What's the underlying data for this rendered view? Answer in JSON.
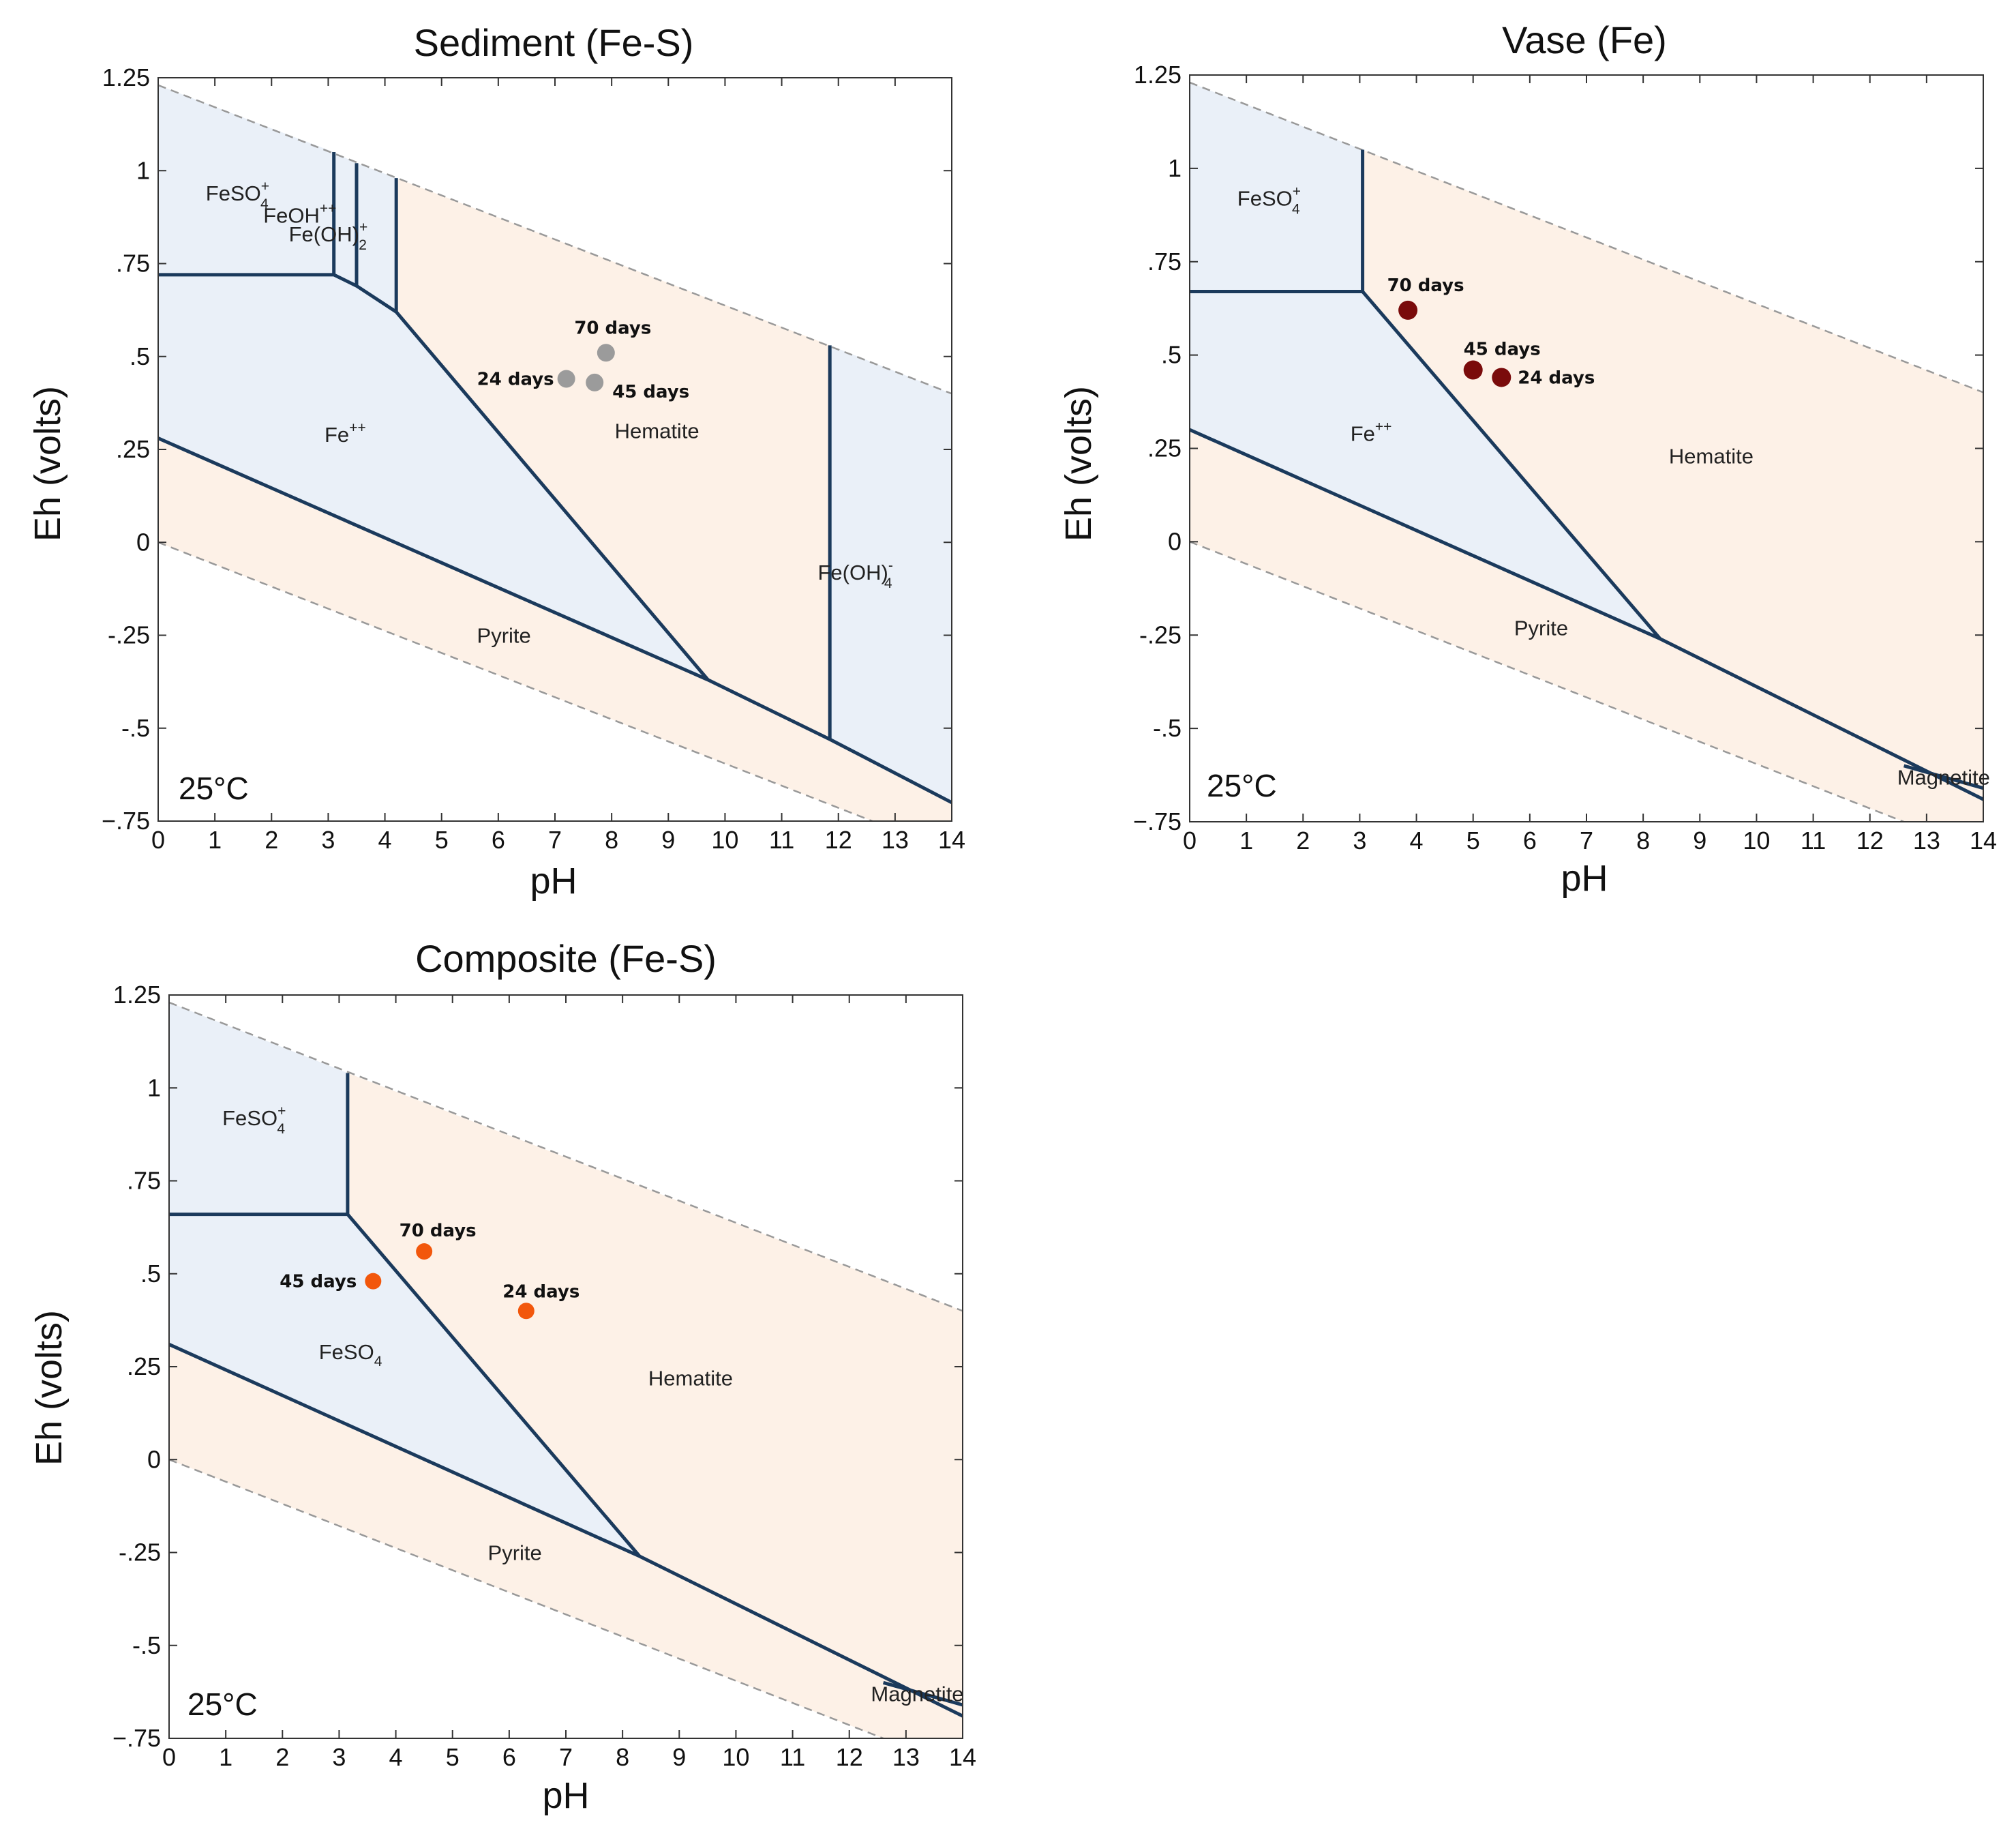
{
  "chart_data": [
    {
      "type": "scatter",
      "title": "Sediment (Fe-S)",
      "xlabel": "pH",
      "ylabel": "Eh (volts)",
      "xlim": [
        0,
        14
      ],
      "ylim": [
        -0.75,
        1.25
      ],
      "xticks": [
        "0",
        "1",
        "2",
        "3",
        "4",
        "5",
        "6",
        "7",
        "8",
        "9",
        "10",
        "11",
        "12",
        "13",
        "14"
      ],
      "yticks": [
        {
          "value": 1.25,
          "label": "1.25"
        },
        {
          "value": 1,
          "label": "1"
        },
        {
          "value": 0.75,
          "label": ".75"
        },
        {
          "value": 0.5,
          "label": ".5"
        },
        {
          "value": 0.25,
          "label": ".25"
        },
        {
          "value": 0,
          "label": "0"
        },
        {
          "value": -0.25,
          "label": "-.25"
        },
        {
          "value": -0.5,
          "label": "-.5"
        },
        {
          "value": -0.75,
          "label": "−.75"
        }
      ],
      "temperature": "25°C",
      "point_color": "#9b9b9b",
      "points": [
        {
          "label": "70 days",
          "x": 7.9,
          "y": 0.51
        },
        {
          "label": "24 days",
          "x": 7.2,
          "y": 0.44
        },
        {
          "label": "45 days",
          "x": 7.7,
          "y": 0.43
        }
      ],
      "regions": [
        {
          "name": "FeSO4+",
          "base": "FeSO",
          "sub": "4",
          "sup": "+",
          "x": 1.4,
          "y": 0.92,
          "fill": "#eaf0f8"
        },
        {
          "name": "FeOH++",
          "base": "FeOH",
          "sup": "++",
          "x": 2.5,
          "y": 0.86,
          "fill": "#eaf0f8"
        },
        {
          "name": "Fe(OH)2+",
          "base": "Fe(OH)",
          "sub": "2",
          "sup": "+",
          "x": 3.0,
          "y": 0.81,
          "fill": "#eaf0f8"
        },
        {
          "name": "Fe++",
          "base": "Fe",
          "sup": "++",
          "x": 3.3,
          "y": 0.27,
          "fill": "#eaf0f8"
        },
        {
          "name": "Hematite",
          "base": "Hematite",
          "x": 8.8,
          "y": 0.28,
          "fill": "#fdf1e7"
        },
        {
          "name": "Fe(OH)4-",
          "base": "Fe(OH)",
          "sub": "4",
          "sup": "-",
          "x": 12.3,
          "y": -0.1,
          "fill": "#eaf0f8"
        },
        {
          "name": "Pyrite",
          "base": "Pyrite",
          "x": 6.1,
          "y": -0.27,
          "fill": "#fdf1e7"
        }
      ]
    },
    {
      "type": "scatter",
      "title": "Vase (Fe)",
      "xlabel": "pH",
      "ylabel": "Eh (volts)",
      "xlim": [
        0,
        14
      ],
      "ylim": [
        -0.75,
        1.25
      ],
      "xticks": [
        "0",
        "1",
        "2",
        "3",
        "4",
        "5",
        "6",
        "7",
        "8",
        "9",
        "10",
        "11",
        "12",
        "13",
        "14"
      ],
      "yticks": [
        {
          "value": 1.25,
          "label": "1.25"
        },
        {
          "value": 1,
          "label": "1"
        },
        {
          "value": 0.75,
          "label": ".75"
        },
        {
          "value": 0.5,
          "label": ".5"
        },
        {
          "value": 0.25,
          "label": ".25"
        },
        {
          "value": 0,
          "label": "0"
        },
        {
          "value": -0.25,
          "label": "-.25"
        },
        {
          "value": -0.5,
          "label": "-.5"
        },
        {
          "value": -0.75,
          "label": "−.75"
        }
      ],
      "temperature": "25°C",
      "point_color": "#7a0b0b",
      "points": [
        {
          "label": "70 days",
          "x": 3.85,
          "y": 0.62
        },
        {
          "label": "45 days",
          "x": 5.0,
          "y": 0.46
        },
        {
          "label": "24 days",
          "x": 5.5,
          "y": 0.44
        }
      ],
      "regions": [
        {
          "name": "FeSO4+",
          "base": "FeSO",
          "sub": "4",
          "sup": "+",
          "x": 1.4,
          "y": 0.9,
          "fill": "#eaf0f8"
        },
        {
          "name": "Fe++",
          "base": "Fe",
          "sup": "++",
          "x": 3.2,
          "y": 0.27,
          "fill": "#eaf0f8"
        },
        {
          "name": "Hematite",
          "base": "Hematite",
          "x": 9.2,
          "y": 0.21,
          "fill": "#fdf1e7"
        },
        {
          "name": "Pyrite",
          "base": "Pyrite",
          "x": 6.2,
          "y": -0.25,
          "fill": "#fdf1e7"
        },
        {
          "name": "Magnetite",
          "base": "Magnetite",
          "x": 13.3,
          "y": -0.65,
          "fill": "#fdf1e7"
        }
      ]
    },
    {
      "type": "scatter",
      "title": "Composite (Fe-S)",
      "xlabel": "pH",
      "ylabel": "Eh (volts)",
      "xlim": [
        0,
        14
      ],
      "ylim": [
        -0.75,
        1.25
      ],
      "xticks": [
        "0",
        "1",
        "2",
        "3",
        "4",
        "5",
        "6",
        "7",
        "8",
        "9",
        "10",
        "11",
        "12",
        "13",
        "14"
      ],
      "yticks": [
        {
          "value": 1.25,
          "label": "1.25"
        },
        {
          "value": 1,
          "label": "1"
        },
        {
          "value": 0.75,
          "label": ".75"
        },
        {
          "value": 0.5,
          "label": ".5"
        },
        {
          "value": 0.25,
          "label": ".25"
        },
        {
          "value": 0,
          "label": "0"
        },
        {
          "value": -0.25,
          "label": "-.25"
        },
        {
          "value": -0.5,
          "label": "-.5"
        },
        {
          "value": -0.75,
          "label": "−.75"
        }
      ],
      "temperature": "25°C",
      "point_color": "#f2570c",
      "points": [
        {
          "label": "70 days",
          "x": 4.5,
          "y": 0.56
        },
        {
          "label": "45 days",
          "x": 3.6,
          "y": 0.48
        },
        {
          "label": "24 days",
          "x": 6.3,
          "y": 0.4
        }
      ],
      "regions": [
        {
          "name": "FeSO4+",
          "base": "FeSO",
          "sub": "4",
          "sup": "+",
          "x": 1.5,
          "y": 0.9,
          "fill": "#eaf0f8"
        },
        {
          "name": "FeSO4",
          "base": "FeSO",
          "sub": "4",
          "x": 3.2,
          "y": 0.27,
          "fill": "#eaf0f8"
        },
        {
          "name": "Hematite",
          "base": "Hematite",
          "x": 9.2,
          "y": 0.2,
          "fill": "#fdf1e7"
        },
        {
          "name": "Pyrite",
          "base": "Pyrite",
          "x": 6.1,
          "y": -0.27,
          "fill": "#fdf1e7"
        },
        {
          "name": "Magnetite",
          "base": "Magnetite",
          "x": 13.2,
          "y": -0.65,
          "fill": "#fdf1e7"
        }
      ]
    }
  ]
}
